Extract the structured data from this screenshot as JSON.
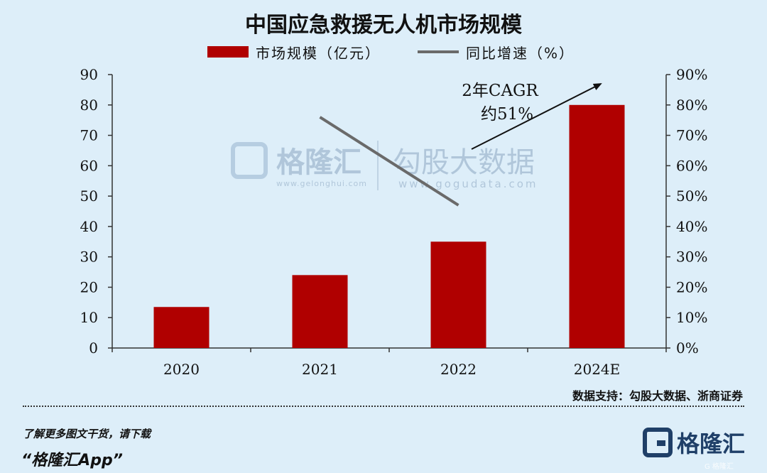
{
  "title": "中国应急救援无人机市场规模",
  "legend": {
    "bar_label": "市场规模（亿元）",
    "line_label": "同比增速（%）"
  },
  "annotation": {
    "line1": "2年CAGR",
    "line2": "约51%"
  },
  "watermark": {
    "brand": "格隆汇",
    "brand_url": "www.gelonghui.com",
    "partner": "勾股大数据",
    "partner_url": "www.gogudata.com"
  },
  "source": "数据支持：勾股大数据、浙商证券",
  "footer": {
    "promo_line1": "了解更多图文干货，请下载",
    "promo_line2": "“格隆汇App”",
    "brand_name": "格隆汇",
    "small_watermark": "G 格隆汇"
  },
  "colors": {
    "bar": "#b00000",
    "line": "#6a6a6a",
    "axis": "#333333",
    "background": "#ddeef9"
  },
  "chart_data": {
    "type": "bar",
    "categories": [
      "2020",
      "2021",
      "2022",
      "2024E"
    ],
    "series": [
      {
        "name": "市场规模（亿元）",
        "type": "bar",
        "axis": "left",
        "values": [
          13.5,
          24,
          35,
          80
        ]
      },
      {
        "name": "同比增速（%）",
        "type": "line",
        "axis": "right",
        "values": [
          null,
          76,
          47,
          null
        ]
      }
    ],
    "y_left": {
      "min": 0,
      "max": 90,
      "step": 10,
      "ticks": [
        "0",
        "10",
        "20",
        "30",
        "40",
        "50",
        "60",
        "70",
        "80",
        "90"
      ]
    },
    "y_right": {
      "min": 0,
      "max": 90,
      "step": 10,
      "ticks": [
        "0%",
        "10%",
        "20%",
        "30%",
        "40%",
        "50%",
        "60%",
        "70%",
        "80%",
        "90%"
      ]
    },
    "grid": false,
    "legend_position": "top"
  }
}
